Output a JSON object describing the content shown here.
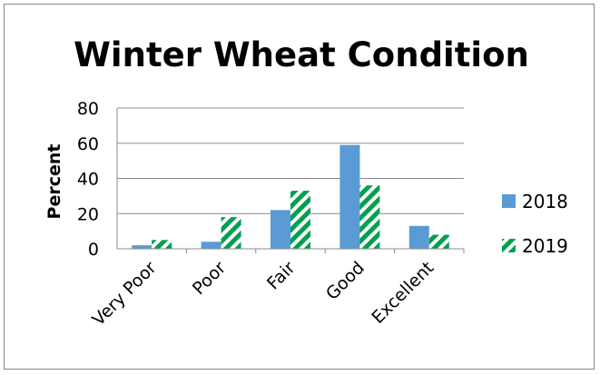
{
  "chart_data": {
    "type": "bar",
    "title": "Winter Wheat Condition",
    "ylabel": "Percent",
    "xlabel": "",
    "categories": [
      "Very Poor",
      "Poor",
      "Fair",
      "Good",
      "Excellent"
    ],
    "series": [
      {
        "name": "2018",
        "values": [
          2,
          4,
          22,
          59,
          13
        ],
        "color": "#5B9BD5",
        "pattern": "solid"
      },
      {
        "name": "2019",
        "values": [
          5,
          18,
          33,
          36,
          8
        ],
        "color": "#00A050",
        "pattern": "diagonal-stripes"
      }
    ],
    "ylim": [
      0,
      80
    ],
    "yticks": [
      0,
      20,
      40,
      60,
      80
    ],
    "grid": true,
    "legend": "right"
  }
}
